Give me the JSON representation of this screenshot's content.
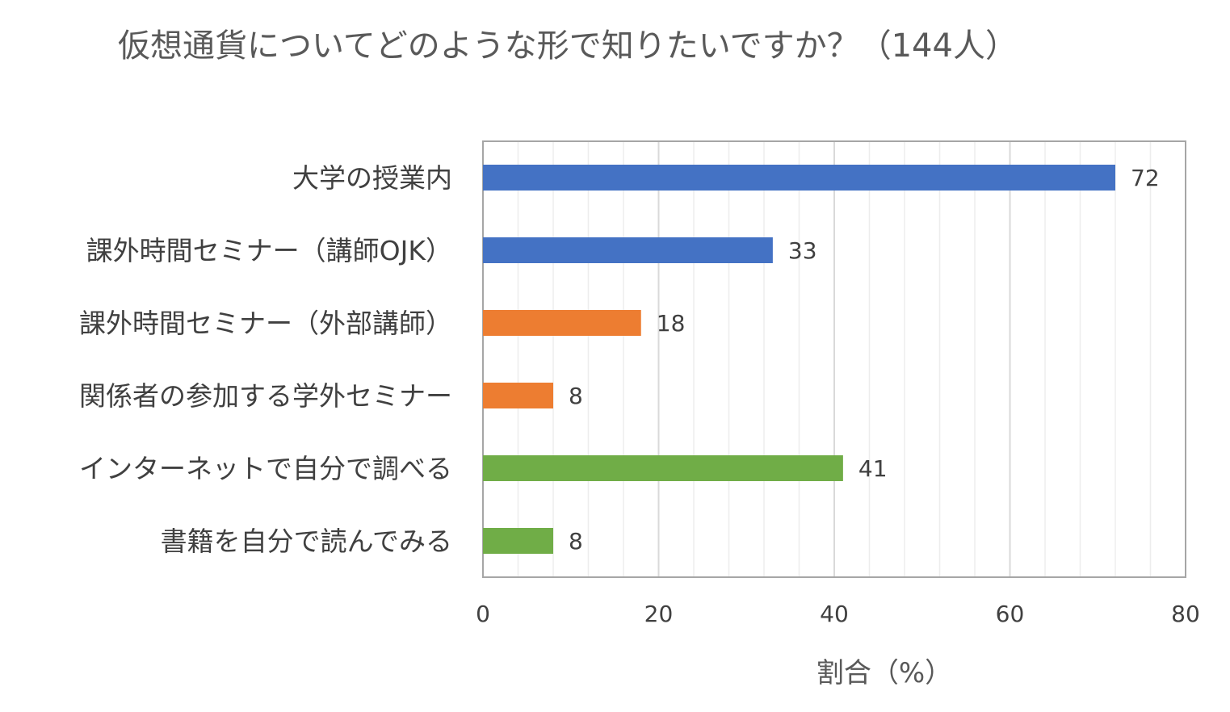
{
  "chart_data": {
    "type": "bar",
    "orientation": "horizontal",
    "title": "仮想通貨についてどのような形で知りたいですか？（144人）",
    "xlabel": "割合（%）",
    "ylabel": "",
    "xlim": [
      0,
      80
    ],
    "x_ticks": [
      0,
      20,
      40,
      60,
      80
    ],
    "minor_gridlines": true,
    "legend": "none",
    "categories": [
      "大学の授業内",
      "課外時間セミナー（講師OJK）",
      "課外時間セミナー（外部講師）",
      "関係者の参加する学外セミナー",
      "インターネットで自分で調べる",
      "書籍を自分で読んでみる"
    ],
    "values": [
      72,
      33,
      18,
      8,
      41,
      8
    ],
    "bar_colors": [
      "#4472C4",
      "#4472C4",
      "#ED7D31",
      "#ED7D31",
      "#70AD47",
      "#70AD47"
    ]
  },
  "colors": {
    "plot_border": "#A6A6A6",
    "major_grid": "#D9D9D9",
    "minor_grid": "#EDEDED"
  }
}
